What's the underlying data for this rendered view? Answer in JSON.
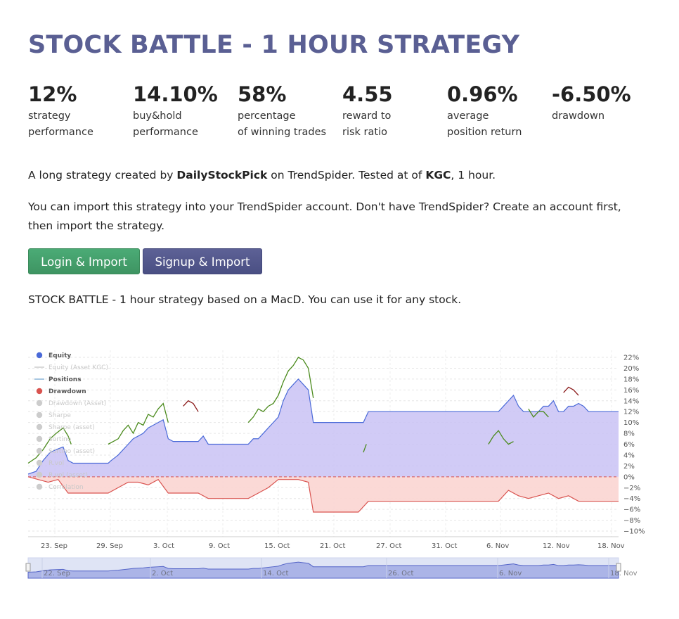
{
  "page": {
    "title": "STOCK BATTLE - 1 HOUR STRATEGY"
  },
  "stats": [
    {
      "value": "12%",
      "label": "strategy\nperformance"
    },
    {
      "value": "14.10%",
      "label": "buy&hold\nperformance"
    },
    {
      "value": "58%",
      "label": "percentage\nof winning trades"
    },
    {
      "value": "4.55",
      "label": "reward to\nrisk ratio"
    },
    {
      "value": "0.96%",
      "label": "average\nposition return"
    },
    {
      "value": "-6.50%",
      "label": "drawdown"
    }
  ],
  "intro": {
    "prefix": "A long strategy created by ",
    "author": "DailyStockPick",
    "middle": " on TrendSpider. Tested at of ",
    "ticker": "KGC",
    "suffix": ", 1 hour."
  },
  "import_text": "You can import this strategy into your TrendSpider account. Don't have TrendSpider? Create an account first, then import the strategy.",
  "buttons": {
    "login": "Login & Import",
    "signup": "Signup & Import"
  },
  "description": "STOCK BATTLE - 1 hour strategy based on a MacD. You can use it for any stock.",
  "colors": {
    "title": "#5a5f93",
    "equity_line": "#4a6ad8",
    "equity_fill": "#c9c2f5",
    "drawdown_line": "#d9534f",
    "drawdown_fill": "#fbd5d2",
    "asset_line": "#4a8a1c",
    "asset_line_neg": "#8b1a1a",
    "login_button": "#46a36e",
    "signup_button": "#545990"
  },
  "chart_data": {
    "type": "area",
    "ylim": [
      -10,
      22
    ],
    "y_ticks": [
      "22%",
      "20%",
      "18%",
      "16%",
      "14%",
      "12%",
      "10%",
      "8%",
      "6%",
      "4%",
      "2%",
      "0%",
      "−2%",
      "−4%",
      "−6%",
      "−8%",
      "−10%"
    ],
    "x_ticks": [
      "23. Sep",
      "29. Sep",
      "3. Oct",
      "9. Oct",
      "15. Oct",
      "21. Oct",
      "27. Oct",
      "31. Oct",
      "6. Nov",
      "12. Nov",
      "18. Nov"
    ],
    "navigator_ticks": [
      "22. Sep",
      "2. Oct",
      "14. Oct",
      "26. Oct",
      "6. Nov",
      "18. Nov"
    ],
    "legend": [
      {
        "name": "Equity",
        "icon": "dot",
        "color": "#4a6ad8",
        "active": true
      },
      {
        "name": "Equity (Asset KGC)",
        "icon": "line",
        "color": "#cccccc",
        "active": false
      },
      {
        "name": "Positions",
        "icon": "line",
        "color": "#8ab4d8",
        "active": true
      },
      {
        "name": "Drawdown",
        "icon": "dot",
        "color": "#d9534f",
        "active": true
      },
      {
        "name": "Drawdown (Asset)",
        "icon": "dot",
        "color": "#cccccc",
        "active": false
      },
      {
        "name": "Sharpe",
        "icon": "dot",
        "color": "#cccccc",
        "active": false
      },
      {
        "name": "Sharpe (asset)",
        "icon": "dot",
        "color": "#cccccc",
        "active": false
      },
      {
        "name": "Sortino",
        "icon": "dot",
        "color": "#cccccc",
        "active": false
      },
      {
        "name": "Sortino (asset)",
        "icon": "dot",
        "color": "#cccccc",
        "active": false
      },
      {
        "name": "R.vol",
        "icon": "dot",
        "color": "#cccccc",
        "active": false
      },
      {
        "name": "R.vol (asset)",
        "icon": "dot",
        "color": "#cccccc",
        "active": false
      },
      {
        "name": "Correlation",
        "icon": "dot",
        "color": "#cccccc",
        "active": false
      }
    ],
    "x_range_days": [
      0,
      59
    ],
    "series": [
      {
        "name": "Equity",
        "points": [
          [
            0,
            0.5
          ],
          [
            0.8,
            1
          ],
          [
            1.5,
            3
          ],
          [
            2.2,
            4.5
          ],
          [
            2.8,
            5
          ],
          [
            3.5,
            5.5
          ],
          [
            4,
            3
          ],
          [
            4.5,
            2.5
          ],
          [
            8,
            2.5
          ],
          [
            8.3,
            3
          ],
          [
            9,
            4
          ],
          [
            9.5,
            5
          ],
          [
            10,
            6
          ],
          [
            10.5,
            7
          ],
          [
            11,
            7.5
          ],
          [
            11.5,
            8
          ],
          [
            12,
            9
          ],
          [
            12.5,
            9.5
          ],
          [
            13,
            10
          ],
          [
            13.5,
            10.5
          ],
          [
            14,
            7
          ],
          [
            14.5,
            6.5
          ],
          [
            17,
            6.5
          ],
          [
            17.5,
            7.5
          ],
          [
            18,
            6
          ],
          [
            18.5,
            6
          ],
          [
            22,
            6
          ],
          [
            22.5,
            7
          ],
          [
            23,
            7
          ],
          [
            23.5,
            8
          ],
          [
            24,
            9
          ],
          [
            24.5,
            10
          ],
          [
            25,
            11
          ],
          [
            25.5,
            14
          ],
          [
            26,
            16
          ],
          [
            26.5,
            17
          ],
          [
            27,
            18
          ],
          [
            27.5,
            17
          ],
          [
            28,
            16
          ],
          [
            28.5,
            10
          ],
          [
            33,
            10
          ],
          [
            33.5,
            10
          ],
          [
            34,
            12
          ],
          [
            42,
            12
          ],
          [
            47,
            12
          ],
          [
            47.5,
            13
          ],
          [
            48,
            14
          ],
          [
            48.5,
            15
          ],
          [
            49,
            13
          ],
          [
            49.5,
            12
          ],
          [
            51,
            12
          ],
          [
            51.5,
            13
          ],
          [
            52,
            13
          ],
          [
            52.5,
            14
          ],
          [
            53,
            12
          ],
          [
            53.5,
            12
          ],
          [
            54,
            13
          ],
          [
            54.5,
            13
          ],
          [
            55,
            13.5
          ],
          [
            55.5,
            13
          ],
          [
            56,
            12
          ],
          [
            59,
            12
          ]
        ]
      },
      {
        "name": "Drawdown",
        "points": [
          [
            0,
            0
          ],
          [
            1,
            -0.5
          ],
          [
            2,
            -1
          ],
          [
            3,
            -0.5
          ],
          [
            4,
            -3
          ],
          [
            8,
            -3
          ],
          [
            9,
            -2
          ],
          [
            10,
            -1
          ],
          [
            11,
            -1
          ],
          [
            12,
            -1.5
          ],
          [
            13,
            -0.5
          ],
          [
            14,
            -3
          ],
          [
            17,
            -3
          ],
          [
            18,
            -4
          ],
          [
            22,
            -4
          ],
          [
            23,
            -3
          ],
          [
            24,
            -2
          ],
          [
            25,
            -0.5
          ],
          [
            26,
            -0.5
          ],
          [
            27,
            -0.5
          ],
          [
            28,
            -1
          ],
          [
            28.5,
            -6.5
          ],
          [
            33,
            -6.5
          ],
          [
            34,
            -4.5
          ],
          [
            42,
            -4.5
          ],
          [
            47,
            -4.5
          ],
          [
            48,
            -2.5
          ],
          [
            49,
            -3.5
          ],
          [
            50,
            -4
          ],
          [
            51,
            -3.5
          ],
          [
            52,
            -3
          ],
          [
            53,
            -4
          ],
          [
            54,
            -3.5
          ],
          [
            55,
            -4.5
          ],
          [
            59,
            -4.5
          ]
        ]
      },
      {
        "name": "Equity (Asset KGC)",
        "segments": [
          [
            [
              0,
              2.5
            ],
            [
              0.8,
              3.5
            ],
            [
              1.5,
              5
            ],
            [
              2.2,
              7
            ],
            [
              2.8,
              8
            ],
            [
              3.5,
              9
            ],
            [
              4,
              7.5
            ],
            [
              4.3,
              6
            ]
          ],
          [
            [
              8,
              6
            ],
            [
              8.5,
              6.5
            ],
            [
              9,
              7
            ],
            [
              9.5,
              8.5
            ],
            [
              10,
              9.5
            ],
            [
              10.5,
              8
            ],
            [
              11,
              10
            ],
            [
              11.5,
              9.5
            ],
            [
              12,
              11.5
            ],
            [
              12.5,
              11
            ],
            [
              13,
              12.5
            ],
            [
              13.5,
              13.5
            ],
            [
              14,
              10
            ]
          ],
          [
            [
              22,
              10
            ],
            [
              22.5,
              11
            ],
            [
              23,
              12.5
            ],
            [
              23.5,
              12
            ],
            [
              24,
              13
            ],
            [
              24.5,
              13.5
            ],
            [
              25,
              15
            ],
            [
              25.5,
              17.5
            ],
            [
              26,
              19.5
            ],
            [
              26.5,
              20.5
            ],
            [
              27,
              22
            ],
            [
              27.5,
              21.5
            ],
            [
              28,
              20
            ],
            [
              28.5,
              14.5
            ]
          ],
          [
            [
              33.5,
              4.5
            ],
            [
              33.8,
              6
            ]
          ],
          [
            [
              46,
              6
            ],
            [
              46.5,
              7.5
            ],
            [
              47,
              8.5
            ],
            [
              47.5,
              7
            ],
            [
              48,
              6
            ],
            [
              48.5,
              6.5
            ]
          ],
          [
            [
              50,
              12.5
            ],
            [
              50.5,
              11
            ],
            [
              51,
              12
            ],
            [
              51.5,
              12
            ],
            [
              52,
              11
            ]
          ]
        ]
      }
    ]
  }
}
